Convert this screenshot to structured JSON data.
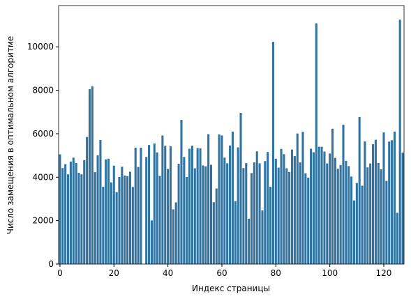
{
  "chart_data": {
    "type": "bar",
    "xlabel": "Индекс страницы",
    "ylabel": "Число замещения в оптимальном алгоритме",
    "color": "#3274a1",
    "x": [
      0,
      1,
      2,
      3,
      4,
      5,
      6,
      7,
      8,
      9,
      10,
      11,
      12,
      13,
      14,
      15,
      16,
      17,
      18,
      19,
      20,
      21,
      22,
      23,
      24,
      25,
      26,
      27,
      28,
      29,
      30,
      31,
      32,
      33,
      34,
      35,
      36,
      37,
      38,
      39,
      40,
      41,
      42,
      43,
      44,
      45,
      46,
      47,
      48,
      49,
      50,
      51,
      52,
      53,
      54,
      55,
      56,
      57,
      58,
      59,
      60,
      61,
      62,
      63,
      64,
      65,
      66,
      67,
      68,
      69,
      70,
      71,
      72,
      73,
      74,
      75,
      76,
      77,
      78,
      79,
      80,
      81,
      82,
      83,
      84,
      85,
      86,
      87,
      88,
      89,
      90,
      91,
      92,
      93,
      94,
      95,
      96,
      97,
      98,
      99,
      100,
      101,
      102,
      103,
      104,
      105,
      106,
      107,
      108,
      109,
      110,
      111,
      112,
      113,
      114,
      115,
      116,
      117,
      118,
      119,
      120,
      121,
      122,
      123,
      124,
      125,
      126,
      127
    ],
    "values": [
      5050,
      4420,
      4600,
      4130,
      4720,
      4900,
      4650,
      4200,
      4130,
      4780,
      5850,
      8050,
      8180,
      4230,
      5010,
      5710,
      3560,
      4820,
      4850,
      3760,
      4530,
      3310,
      4010,
      4480,
      4080,
      4050,
      4250,
      3550,
      5360,
      4470,
      5360,
      0,
      4930,
      5480,
      2010,
      5550,
      5140,
      4060,
      5920,
      5450,
      4380,
      5420,
      2520,
      2840,
      4620,
      6640,
      4930,
      4010,
      5310,
      5450,
      4410,
      5340,
      5330,
      4540,
      4500,
      5980,
      4570,
      2850,
      3480,
      5970,
      5920,
      4900,
      4640,
      5460,
      6100,
      2900,
      5370,
      6960,
      4420,
      4650,
      2090,
      4190,
      4680,
      5190,
      4640,
      2470,
      4740,
      5160,
      3560,
      10230,
      4850,
      4440,
      5300,
      5060,
      4410,
      4240,
      5270,
      4970,
      6010,
      4680,
      6090,
      4180,
      3980,
      5310,
      5150,
      11080,
      5400,
      5400,
      5180,
      4630,
      5090,
      6230,
      4890,
      4390,
      4560,
      6420,
      4750,
      4510,
      4030,
      2930,
      3730,
      6770,
      3610,
      5650,
      4450,
      4630,
      5520,
      5720,
      4650,
      4360,
      6060,
      3830,
      5640,
      5700,
      6100,
      2360,
      11250,
      5130
    ],
    "xlim": [
      -0.5,
      127.5
    ],
    "xticks": [
      0,
      20,
      40,
      60,
      80,
      100,
      120
    ],
    "ylim": [
      0,
      11900
    ],
    "yticks": [
      0,
      2000,
      4000,
      6000,
      8000,
      10000
    ]
  }
}
